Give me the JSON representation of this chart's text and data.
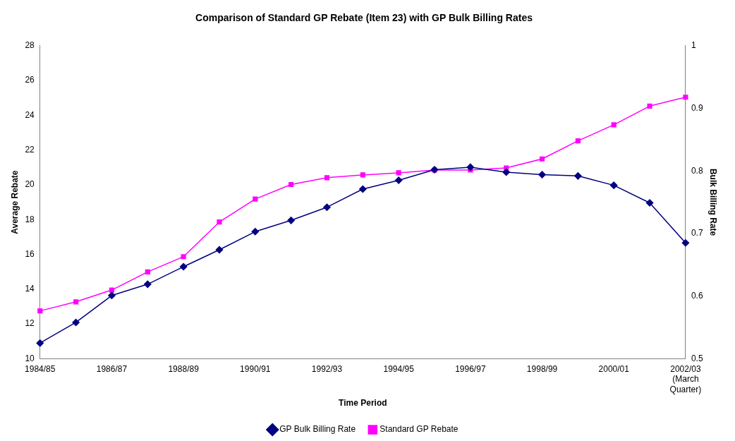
{
  "chart_data": {
    "type": "line",
    "title": "Comparison of Standard GP Rebate (Item 23) with GP Bulk Billing Rates",
    "xlabel": "Time Period",
    "ylabel": "Average Rebate",
    "y2label": "Bulk Billing Rate",
    "categories": [
      "1984/85",
      null,
      "1986/87",
      null,
      "1988/89",
      null,
      "1990/91",
      null,
      "1992/93",
      null,
      "1994/95",
      null,
      "1996/97",
      null,
      "1998/99",
      null,
      "2000/01",
      null,
      "2002/03\n(March\nQuarter)"
    ],
    "series": [
      {
        "name": "Standard GP Rebate",
        "color": "#ff00ff",
        "marker": "square",
        "values": [
          12.75,
          13.27,
          13.95,
          14.99,
          15.87,
          17.86,
          19.18,
          20.02,
          20.41,
          20.57,
          20.69,
          20.85,
          20.85,
          20.97,
          21.49,
          22.53,
          23.45,
          24.53,
          25.04
        ]
      },
      {
        "name": "GP Bulk Billing Rate",
        "color": "#000080",
        "marker": "diamond",
        "axis": "y2",
        "values": [
          0.525,
          0.558,
          0.601,
          0.619,
          0.647,
          0.674,
          0.703,
          0.721,
          0.742,
          0.771,
          0.785,
          0.802,
          0.806,
          0.798,
          0.794,
          0.792,
          0.777,
          0.749,
          0.685
        ]
      }
    ],
    "ylim": [
      10,
      28
    ],
    "yticks": [
      10,
      12,
      14,
      16,
      18,
      20,
      22,
      24,
      26,
      28
    ],
    "y2lim": [
      0.5,
      1
    ],
    "y2ticks": [
      0.5,
      0.6,
      0.7,
      0.8,
      0.9,
      1
    ],
    "grid": false,
    "legend": "bottom",
    "line_style": "solid"
  }
}
